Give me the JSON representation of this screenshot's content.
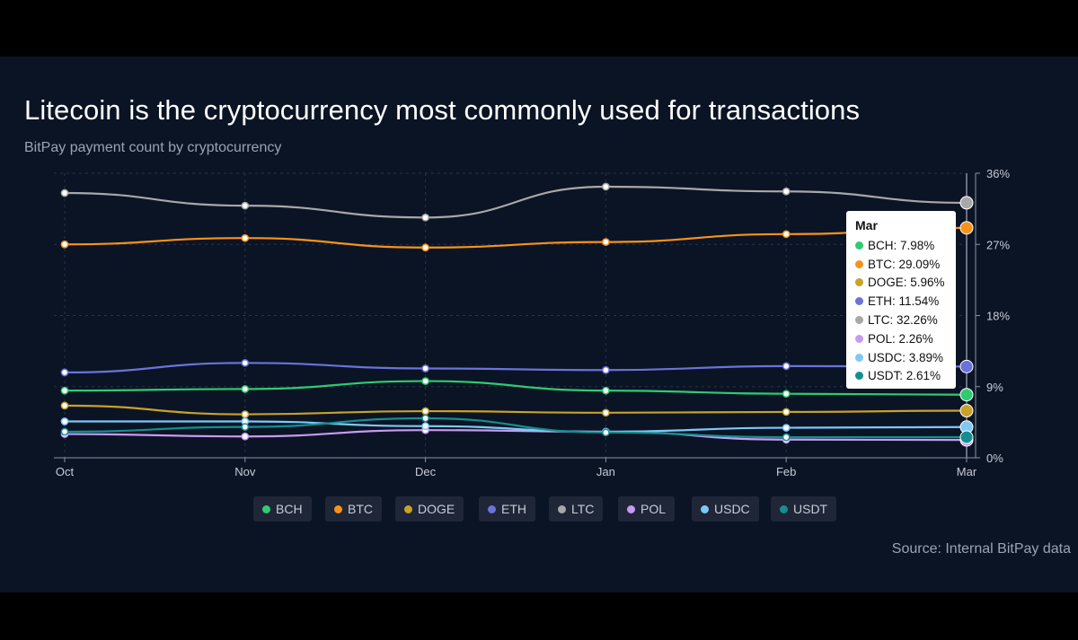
{
  "title": "Litecoin is the cryptocurrency most commonly used for transactions",
  "subtitle": "BitPay payment count by cryptocurrency",
  "source": "Source: Internal BitPay data",
  "tooltip": {
    "title": "Mar",
    "rows": [
      {
        "label": "BCH: 7.98%",
        "color": "#2ecc71"
      },
      {
        "label": "BTC: 29.09%",
        "color": "#f7931a"
      },
      {
        "label": "DOGE: 5.96%",
        "color": "#c9a227"
      },
      {
        "label": "ETH: 11.54%",
        "color": "#6b73d9"
      },
      {
        "label": "LTC: 32.26%",
        "color": "#a8a8a8"
      },
      {
        "label": "POL: 2.26%",
        "color": "#c79bf2"
      },
      {
        "label": "USDC: 3.89%",
        "color": "#7ec8f7"
      },
      {
        "label": "USDT: 2.61%",
        "color": "#148f8f"
      }
    ]
  },
  "chart_data": {
    "type": "line",
    "x": [
      "Oct",
      "Nov",
      "Dec",
      "Jan",
      "Feb",
      "Mar"
    ],
    "ylim": [
      0,
      36
    ],
    "yticks": [
      0,
      9,
      18,
      27,
      36
    ],
    "ytick_labels": [
      "0%",
      "9%",
      "18%",
      "27%",
      "36%"
    ],
    "grid": true,
    "legend_position": "bottom",
    "series": [
      {
        "name": "BCH",
        "color": "#2ecc71",
        "values": [
          8.5,
          8.7,
          9.7,
          8.5,
          8.1,
          7.98
        ]
      },
      {
        "name": "BTC",
        "color": "#f7931a",
        "values": [
          27.0,
          27.8,
          26.6,
          27.3,
          28.3,
          29.09
        ]
      },
      {
        "name": "DOGE",
        "color": "#c9a227",
        "values": [
          6.6,
          5.5,
          5.9,
          5.7,
          5.8,
          5.96
        ]
      },
      {
        "name": "ETH",
        "color": "#6b73d9",
        "values": [
          10.8,
          12.0,
          11.3,
          11.1,
          11.6,
          11.54
        ]
      },
      {
        "name": "LTC",
        "color": "#a8a8a8",
        "values": [
          33.5,
          31.9,
          30.4,
          34.3,
          33.7,
          32.26
        ]
      },
      {
        "name": "POL",
        "color": "#c79bf2",
        "values": [
          3.0,
          2.7,
          3.5,
          3.3,
          2.3,
          2.26
        ]
      },
      {
        "name": "USDC",
        "color": "#7ec8f7",
        "values": [
          4.6,
          4.6,
          4.0,
          3.3,
          3.8,
          3.89
        ]
      },
      {
        "name": "USDT",
        "color": "#148f8f",
        "values": [
          3.3,
          3.9,
          5.0,
          3.2,
          2.6,
          2.61
        ]
      }
    ]
  }
}
